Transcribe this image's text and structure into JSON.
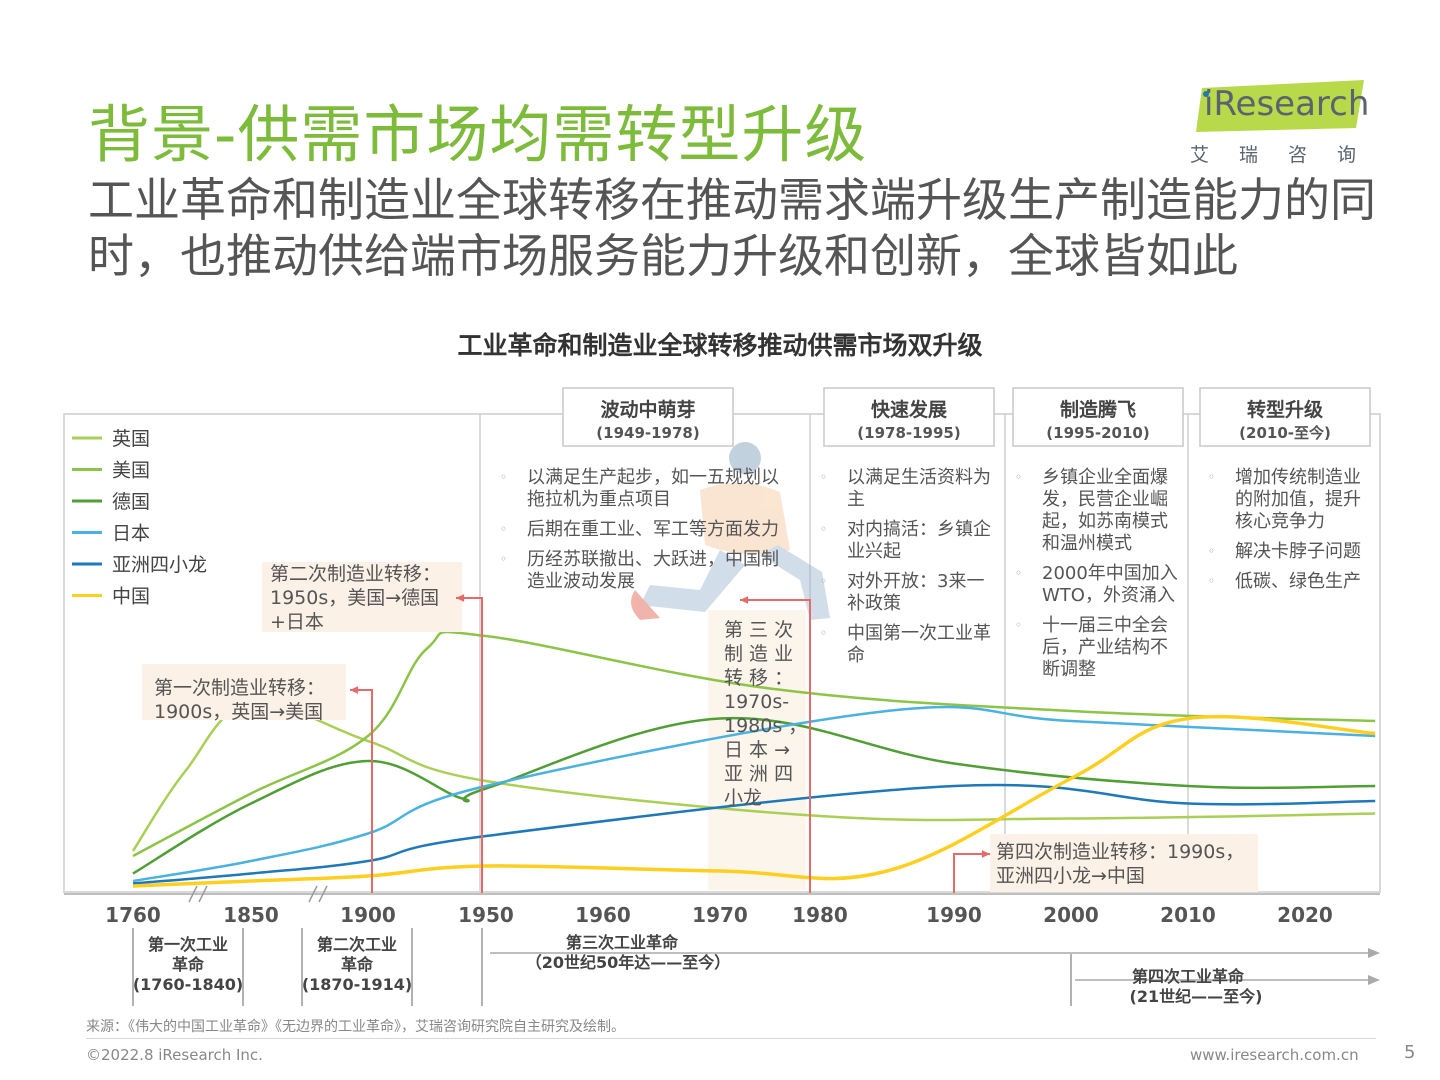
{
  "title": "背景-供需市场均需转型升级",
  "subtitle": "工业革命和制造业全球转移在推动需求端升级生产制造能力的同时，也推动供给端市场服务能力升级和创新，全球皆如此",
  "logo": {
    "text": "iResearch",
    "cn": "艾瑞咨询"
  },
  "chart_data": {
    "type": "line",
    "title": "工业革命和制造业全球转移推动供需市场双升级",
    "x_ticks": [
      1760,
      1850,
      1900,
      1950,
      1960,
      1970,
      1980,
      1990,
      2000,
      2010,
      2020
    ],
    "y_axis_visible": false,
    "colors": {
      "英国": "#a9cf55",
      "美国": "#8cc447",
      "德国": "#4f9f34",
      "日本": "#4ab2e1",
      "亚洲四小龙": "#1e78b9",
      "中国": "#ffcf20"
    },
    "series": [
      {
        "name": "英国",
        "color": "#a9cf55",
        "x": [
          1760,
          1800,
          1850,
          1900,
          1950,
          1980,
          2000,
          2026
        ],
        "y": [
          0.14,
          0.46,
          0.73,
          0.58,
          0.42,
          0.28,
          0.27,
          0.29
        ]
      },
      {
        "name": "美国",
        "color": "#8cc447",
        "x": [
          1760,
          1850,
          1900,
          1925,
          1950,
          1975,
          2000,
          2026
        ],
        "y": [
          0.12,
          0.37,
          0.6,
          0.95,
          1.0,
          0.79,
          0.7,
          0.66
        ]
      },
      {
        "name": "德国",
        "color": "#4f9f34",
        "x": [
          1760,
          1850,
          1900,
          1940,
          1950,
          1970,
          1990,
          2010,
          2026
        ],
        "y": [
          0.05,
          0.33,
          0.5,
          0.35,
          0.39,
          0.67,
          0.49,
          0.4,
          0.4
        ]
      },
      {
        "name": "日本",
        "color": "#4ab2e1",
        "x": [
          1760,
          1850,
          1900,
          1950,
          1985,
          2000,
          2026
        ],
        "y": [
          0.02,
          0.1,
          0.21,
          0.4,
          0.7,
          0.66,
          0.6
        ]
      },
      {
        "name": "亚洲四小龙",
        "color": "#1e78b9",
        "x": [
          1760,
          1850,
          1900,
          1950,
          1990,
          2010,
          2026
        ],
        "y": [
          0.01,
          0.05,
          0.1,
          0.2,
          0.4,
          0.33,
          0.34
        ]
      },
      {
        "name": "中国",
        "color": "#ffcf20",
        "x": [
          1760,
          1850,
          1900,
          1950,
          1970,
          1985,
          2000,
          2010,
          2026
        ],
        "y": [
          0.0,
          0.02,
          0.04,
          0.08,
          0.06,
          0.06,
          0.43,
          0.67,
          0.61
        ]
      }
    ],
    "stages": [
      {
        "title": "波动中萌芽",
        "period": "(1949-1978)",
        "bullets": [
          "以满足生产起步，如一五规划以拖拉机为重点项目",
          "后期在重工业、军工等方面发力",
          "历经苏联撤出、大跃进，中国制造业波动发展"
        ]
      },
      {
        "title": "快速发展",
        "period": "(1978-1995)",
        "bullets": [
          "以满足生活资料为主",
          "对内搞活：乡镇企业兴起",
          "对外开放：3来一补政策",
          "中国第一次工业革命"
        ]
      },
      {
        "title": "制造腾飞",
        "period": "(1995-2010)",
        "bullets": [
          "乡镇企业全面爆发，民营企业崛起，如苏南模式和温州模式",
          "2000年中国加入WTO，外资涌入",
          "十一届三中全会后，产业结构不断调整"
        ]
      },
      {
        "title": "转型升级",
        "period": "(2010-至今)",
        "bullets": [
          "增加传统制造业的附加值，提升核心竞争力",
          "解决卡脖子问题",
          "低碳、绿色生产"
        ]
      }
    ],
    "transfers": [
      {
        "label_lines": [
          "第一次制造业转移：",
          "1900s，英国→美国"
        ]
      },
      {
        "label_lines": [
          "第二次制造业转移：",
          "1950s，美国→德国",
          "+日本"
        ]
      },
      {
        "label_lines": [
          "第 三 次",
          "制 造 业",
          "转 移 ：",
          "1970s-",
          "1980s ，",
          "日 本 →",
          "亚 洲 四",
          "小龙"
        ]
      },
      {
        "label_lines": [
          "第四次制造业转移：1990s，",
          "亚洲四小龙→中国"
        ]
      }
    ],
    "revolutions": [
      {
        "name": "第一次工业",
        "name2": "革命",
        "period": "(1760-1840)"
      },
      {
        "name": "第二次工业",
        "name2": "革命",
        "period": "(1870-1914)"
      },
      {
        "name": "第三次工业革命",
        "name2": "",
        "period": "（20世纪50年达——至今）"
      },
      {
        "name": "第四次工业革命",
        "name2": "",
        "period": "(21世纪——至今)"
      }
    ]
  },
  "footer": {
    "source": "来源：《伟大的中国工业革命》《无边界的工业革命》，艾瑞咨询研究院自主研究及绘制。",
    "copyright": "©2022.8 iResearch Inc.",
    "website": "www.iresearch.com.cn",
    "page": "5"
  }
}
